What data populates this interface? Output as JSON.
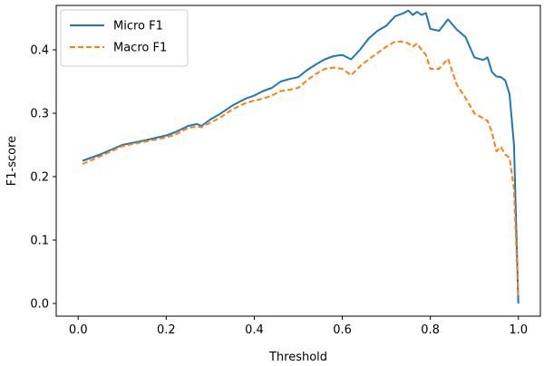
{
  "chart_data": {
    "type": "line",
    "xlabel": "Threshold",
    "ylabel": "F1-score",
    "xlim": [
      -0.05,
      1.05
    ],
    "ylim": [
      -0.02,
      0.47
    ],
    "xticks": [
      0.0,
      0.2,
      0.4,
      0.6,
      0.8,
      1.0
    ],
    "xtick_labels": [
      "0.0",
      "0.2",
      "0.4",
      "0.6",
      "0.8",
      "1.0"
    ],
    "yticks": [
      0.0,
      0.1,
      0.2,
      0.3,
      0.4
    ],
    "ytick_labels": [
      "0.0",
      "0.1",
      "0.2",
      "0.3",
      "0.4"
    ],
    "grid": false,
    "legend_position": "top-left",
    "series": [
      {
        "name": "Micro F1",
        "color": "#1f77b4",
        "style": "solid",
        "x": [
          0.01,
          0.05,
          0.1,
          0.15,
          0.2,
          0.22,
          0.25,
          0.27,
          0.28,
          0.3,
          0.32,
          0.35,
          0.38,
          0.4,
          0.42,
          0.44,
          0.46,
          0.48,
          0.5,
          0.52,
          0.54,
          0.56,
          0.58,
          0.6,
          0.62,
          0.64,
          0.66,
          0.68,
          0.7,
          0.72,
          0.74,
          0.75,
          0.76,
          0.77,
          0.78,
          0.79,
          0.8,
          0.82,
          0.84,
          0.86,
          0.88,
          0.9,
          0.92,
          0.93,
          0.94,
          0.95,
          0.96,
          0.97,
          0.98,
          0.99,
          1.0
        ],
        "y": [
          0.225,
          0.235,
          0.25,
          0.257,
          0.265,
          0.27,
          0.28,
          0.283,
          0.28,
          0.29,
          0.298,
          0.312,
          0.323,
          0.328,
          0.335,
          0.34,
          0.35,
          0.354,
          0.357,
          0.368,
          0.377,
          0.385,
          0.39,
          0.392,
          0.385,
          0.4,
          0.418,
          0.43,
          0.438,
          0.453,
          0.458,
          0.462,
          0.455,
          0.46,
          0.455,
          0.458,
          0.433,
          0.43,
          0.448,
          0.432,
          0.42,
          0.388,
          0.384,
          0.388,
          0.365,
          0.358,
          0.357,
          0.352,
          0.33,
          0.25,
          0.0
        ]
      },
      {
        "name": "Macro F1",
        "color": "#ff7f0e",
        "style": "dashed",
        "x": [
          0.01,
          0.05,
          0.1,
          0.15,
          0.2,
          0.22,
          0.25,
          0.27,
          0.28,
          0.3,
          0.32,
          0.35,
          0.38,
          0.4,
          0.42,
          0.44,
          0.46,
          0.48,
          0.5,
          0.52,
          0.54,
          0.56,
          0.58,
          0.6,
          0.62,
          0.64,
          0.66,
          0.68,
          0.7,
          0.72,
          0.74,
          0.75,
          0.76,
          0.77,
          0.78,
          0.79,
          0.8,
          0.82,
          0.84,
          0.86,
          0.88,
          0.9,
          0.92,
          0.93,
          0.94,
          0.95,
          0.96,
          0.97,
          0.98,
          0.99,
          1.0
        ],
        "y": [
          0.22,
          0.232,
          0.248,
          0.255,
          0.262,
          0.266,
          0.277,
          0.279,
          0.278,
          0.285,
          0.292,
          0.306,
          0.316,
          0.32,
          0.323,
          0.328,
          0.335,
          0.337,
          0.34,
          0.352,
          0.362,
          0.37,
          0.372,
          0.37,
          0.36,
          0.374,
          0.385,
          0.395,
          0.405,
          0.413,
          0.413,
          0.41,
          0.405,
          0.41,
          0.4,
          0.392,
          0.37,
          0.37,
          0.386,
          0.345,
          0.324,
          0.3,
          0.292,
          0.288,
          0.27,
          0.24,
          0.247,
          0.235,
          0.23,
          0.18,
          0.01
        ]
      }
    ]
  }
}
